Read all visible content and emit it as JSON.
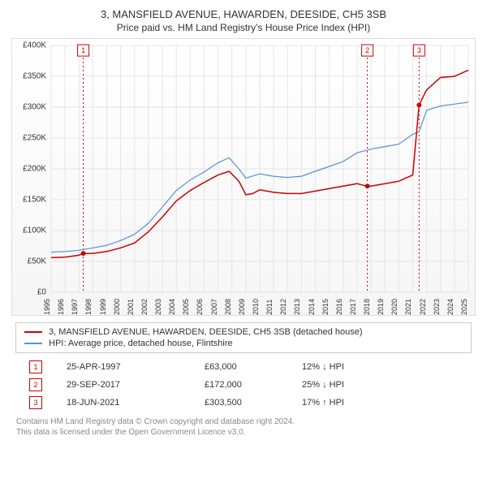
{
  "chart": {
    "title": "3, MANSFIELD AVENUE, HAWARDEN, DEESIDE, CH5 3SB",
    "subtitle": "Price paid vs. HM Land Registry's House Price Index (HPI)",
    "type": "line",
    "background_gradient_top": "#ffffff",
    "background_gradient_bottom": "#f6f6f6",
    "frame_border": "#dddddd",
    "grid_color": "#e5e5e5",
    "text_color": "#333333",
    "x": {
      "min": 1995,
      "max": 2025,
      "tick_step": 1,
      "ticks": [
        1995,
        1996,
        1997,
        1998,
        1999,
        2000,
        2001,
        2002,
        2003,
        2004,
        2005,
        2006,
        2007,
        2008,
        2009,
        2010,
        2011,
        2012,
        2013,
        2014,
        2015,
        2016,
        2017,
        2018,
        2019,
        2020,
        2021,
        2022,
        2023,
        2024,
        2025
      ]
    },
    "y": {
      "min": 0,
      "max": 400000,
      "tick_step": 50000,
      "ticks": [
        0,
        50000,
        100000,
        150000,
        200000,
        250000,
        300000,
        350000,
        400000
      ],
      "tick_labels": [
        "£0",
        "£50K",
        "£100K",
        "£150K",
        "£200K",
        "£250K",
        "£300K",
        "£350K",
        "£400K"
      ]
    },
    "series": [
      {
        "id": "property",
        "label": "3, MANSFIELD AVENUE, HAWARDEN, DEESIDE, CH5 3SB (detached house)",
        "color": "#cc0000",
        "line_width": 1.5,
        "points": [
          [
            1995.0,
            56000
          ],
          [
            1996.0,
            57000
          ],
          [
            1997.0,
            60000
          ],
          [
            1997.3,
            63000
          ],
          [
            1998.0,
            63000
          ],
          [
            1999.0,
            66000
          ],
          [
            2000.0,
            72000
          ],
          [
            2001.0,
            80000
          ],
          [
            2002.0,
            98000
          ],
          [
            2003.0,
            122000
          ],
          [
            2004.0,
            148000
          ],
          [
            2005.0,
            165000
          ],
          [
            2006.0,
            178000
          ],
          [
            2007.0,
            190000
          ],
          [
            2007.8,
            196000
          ],
          [
            2008.5,
            180000
          ],
          [
            2009.0,
            158000
          ],
          [
            2009.5,
            160000
          ],
          [
            2010.0,
            166000
          ],
          [
            2011.0,
            162000
          ],
          [
            2012.0,
            160000
          ],
          [
            2013.0,
            160000
          ],
          [
            2014.0,
            164000
          ],
          [
            2015.0,
            168000
          ],
          [
            2016.0,
            172000
          ],
          [
            2017.0,
            176000
          ],
          [
            2017.7,
            172000
          ],
          [
            2018.0,
            172000
          ],
          [
            2019.0,
            176000
          ],
          [
            2020.0,
            180000
          ],
          [
            2021.0,
            190000
          ],
          [
            2021.46,
            303500
          ],
          [
            2022.0,
            328000
          ],
          [
            2023.0,
            348000
          ],
          [
            2024.0,
            350000
          ],
          [
            2025.0,
            360000
          ]
        ]
      },
      {
        "id": "hpi",
        "label": "HPI: Average price, detached house, Flintshire",
        "color": "#5b8fd6",
        "line_width": 1.2,
        "points": [
          [
            1995.0,
            65000
          ],
          [
            1996.0,
            66000
          ],
          [
            1997.0,
            68000
          ],
          [
            1998.0,
            72000
          ],
          [
            1999.0,
            76000
          ],
          [
            2000.0,
            84000
          ],
          [
            2001.0,
            94000
          ],
          [
            2002.0,
            112000
          ],
          [
            2003.0,
            138000
          ],
          [
            2004.0,
            165000
          ],
          [
            2005.0,
            182000
          ],
          [
            2006.0,
            195000
          ],
          [
            2007.0,
            210000
          ],
          [
            2007.8,
            218000
          ],
          [
            2008.5,
            200000
          ],
          [
            2009.0,
            185000
          ],
          [
            2010.0,
            192000
          ],
          [
            2011.0,
            188000
          ],
          [
            2012.0,
            186000
          ],
          [
            2013.0,
            188000
          ],
          [
            2014.0,
            196000
          ],
          [
            2015.0,
            204000
          ],
          [
            2016.0,
            212000
          ],
          [
            2017.0,
            226000
          ],
          [
            2018.0,
            232000
          ],
          [
            2019.0,
            236000
          ],
          [
            2020.0,
            240000
          ],
          [
            2021.0,
            256000
          ],
          [
            2021.46,
            260000
          ],
          [
            2022.0,
            295000
          ],
          [
            2023.0,
            302000
          ],
          [
            2024.0,
            305000
          ],
          [
            2025.0,
            308000
          ]
        ]
      }
    ],
    "events": [
      {
        "n": "1",
        "date_str": "25-APR-1997",
        "x": 1997.31,
        "price": 63000,
        "price_str": "£63,000",
        "delta": "12% ↓ HPI",
        "color": "#cc0000"
      },
      {
        "n": "2",
        "date_str": "29-SEP-2017",
        "x": 2017.74,
        "price": 172000,
        "price_str": "£172,000",
        "delta": "25% ↓ HPI",
        "color": "#cc0000"
      },
      {
        "n": "3",
        "date_str": "18-JUN-2021",
        "x": 2021.46,
        "price": 303500,
        "price_str": "£303,500",
        "delta": "17% ↑ HPI",
        "color": "#cc0000"
      }
    ],
    "event_marker_top_y": 392000
  },
  "legend": {
    "items": [
      {
        "color": "#cc0000",
        "label": "3, MANSFIELD AVENUE, HAWARDEN, DEESIDE, CH5 3SB (detached house)"
      },
      {
        "color": "#5b8fd6",
        "label": "HPI: Average price, detached house, Flintshire"
      }
    ],
    "border": "#cccccc"
  },
  "footer": {
    "line1": "Contains HM Land Registry data © Crown copyright and database right 2024.",
    "line2": "This data is licensed under the Open Government Licence v3.0.",
    "color": "#888888"
  }
}
